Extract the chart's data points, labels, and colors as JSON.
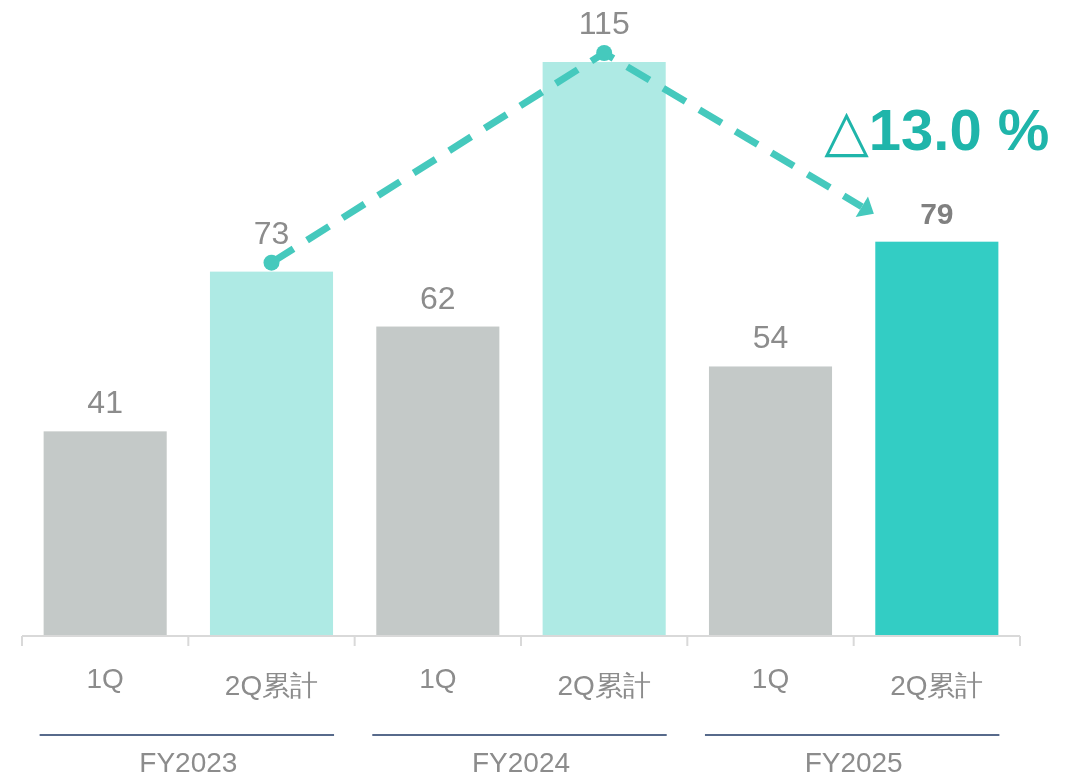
{
  "chart_data": {
    "type": "bar",
    "categories": [
      "1Q",
      "2Q累計",
      "1Q",
      "2Q累計",
      "1Q",
      "2Q累計"
    ],
    "values": [
      41,
      73,
      62,
      115,
      54,
      79
    ],
    "colors": [
      "#c4c9c8",
      "#aeeae4",
      "#c4c9c8",
      "#aeeae4",
      "#c4c9c8",
      "#33cdc4"
    ],
    "data_labels": true,
    "annotations": [
      "△13.0 %",
      "FY2023",
      "FY2024",
      "FY2025"
    ]
  }
}
